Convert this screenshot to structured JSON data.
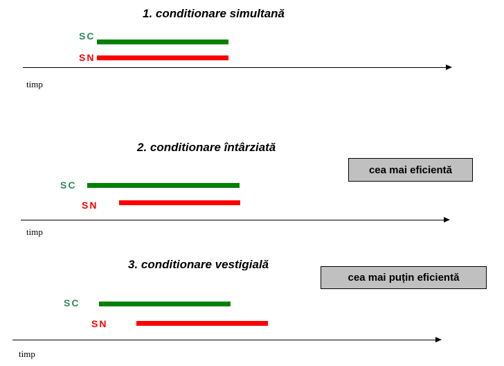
{
  "sections": [
    {
      "title": "1.  conditionare simultană",
      "sc": "SC",
      "sn": "SN",
      "axis": "timp"
    },
    {
      "title": "2.  conditionare întârziată",
      "sc": "SC",
      "sn": "SN",
      "axis": "timp",
      "badge": "cea mai eficientă"
    },
    {
      "title": "3.  conditionare vestigială",
      "sc": "SC",
      "sn": "SN",
      "axis": "timp",
      "badge": "cea mai puțin eficientă"
    }
  ],
  "colors": {
    "sc": "#008000",
    "sn": "#ff0000",
    "badge": "#c0c0c0"
  }
}
